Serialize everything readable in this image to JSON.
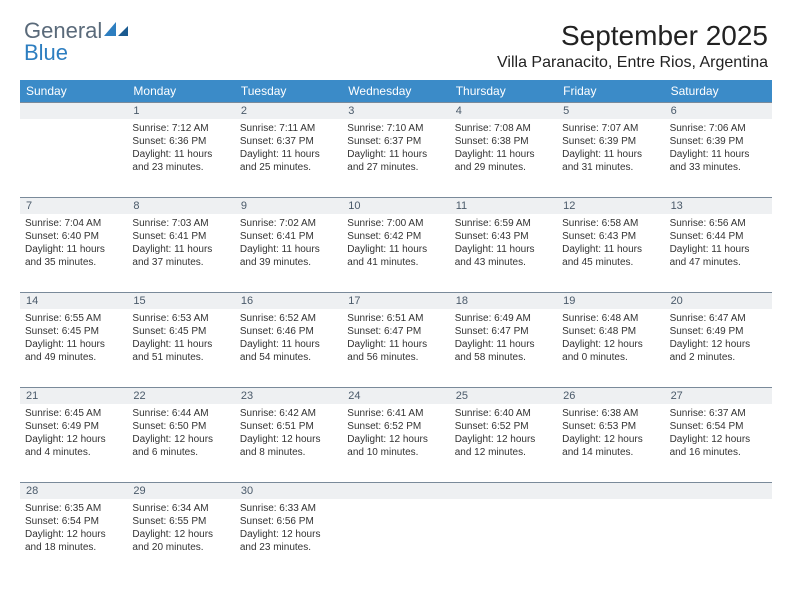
{
  "logo": {
    "word1": "General",
    "word2": "Blue"
  },
  "title": "September 2025",
  "location": "Villa Paranacito, Entre Rios, Argentina",
  "colors": {
    "header_bg": "#3b8bc8",
    "header_text": "#ffffff",
    "daynum_bg": "#eef0f2",
    "border": "#7a8a9a",
    "text": "#333333",
    "logo_gray": "#5a6a7a",
    "logo_blue": "#2d7ec0"
  },
  "day_names": [
    "Sunday",
    "Monday",
    "Tuesday",
    "Wednesday",
    "Thursday",
    "Friday",
    "Saturday"
  ],
  "weeks": [
    [
      {
        "n": "",
        "lines": []
      },
      {
        "n": "1",
        "lines": [
          "Sunrise: 7:12 AM",
          "Sunset: 6:36 PM",
          "Daylight: 11 hours",
          "and 23 minutes."
        ]
      },
      {
        "n": "2",
        "lines": [
          "Sunrise: 7:11 AM",
          "Sunset: 6:37 PM",
          "Daylight: 11 hours",
          "and 25 minutes."
        ]
      },
      {
        "n": "3",
        "lines": [
          "Sunrise: 7:10 AM",
          "Sunset: 6:37 PM",
          "Daylight: 11 hours",
          "and 27 minutes."
        ]
      },
      {
        "n": "4",
        "lines": [
          "Sunrise: 7:08 AM",
          "Sunset: 6:38 PM",
          "Daylight: 11 hours",
          "and 29 minutes."
        ]
      },
      {
        "n": "5",
        "lines": [
          "Sunrise: 7:07 AM",
          "Sunset: 6:39 PM",
          "Daylight: 11 hours",
          "and 31 minutes."
        ]
      },
      {
        "n": "6",
        "lines": [
          "Sunrise: 7:06 AM",
          "Sunset: 6:39 PM",
          "Daylight: 11 hours",
          "and 33 minutes."
        ]
      }
    ],
    [
      {
        "n": "7",
        "lines": [
          "Sunrise: 7:04 AM",
          "Sunset: 6:40 PM",
          "Daylight: 11 hours",
          "and 35 minutes."
        ]
      },
      {
        "n": "8",
        "lines": [
          "Sunrise: 7:03 AM",
          "Sunset: 6:41 PM",
          "Daylight: 11 hours",
          "and 37 minutes."
        ]
      },
      {
        "n": "9",
        "lines": [
          "Sunrise: 7:02 AM",
          "Sunset: 6:41 PM",
          "Daylight: 11 hours",
          "and 39 minutes."
        ]
      },
      {
        "n": "10",
        "lines": [
          "Sunrise: 7:00 AM",
          "Sunset: 6:42 PM",
          "Daylight: 11 hours",
          "and 41 minutes."
        ]
      },
      {
        "n": "11",
        "lines": [
          "Sunrise: 6:59 AM",
          "Sunset: 6:43 PM",
          "Daylight: 11 hours",
          "and 43 minutes."
        ]
      },
      {
        "n": "12",
        "lines": [
          "Sunrise: 6:58 AM",
          "Sunset: 6:43 PM",
          "Daylight: 11 hours",
          "and 45 minutes."
        ]
      },
      {
        "n": "13",
        "lines": [
          "Sunrise: 6:56 AM",
          "Sunset: 6:44 PM",
          "Daylight: 11 hours",
          "and 47 minutes."
        ]
      }
    ],
    [
      {
        "n": "14",
        "lines": [
          "Sunrise: 6:55 AM",
          "Sunset: 6:45 PM",
          "Daylight: 11 hours",
          "and 49 minutes."
        ]
      },
      {
        "n": "15",
        "lines": [
          "Sunrise: 6:53 AM",
          "Sunset: 6:45 PM",
          "Daylight: 11 hours",
          "and 51 minutes."
        ]
      },
      {
        "n": "16",
        "lines": [
          "Sunrise: 6:52 AM",
          "Sunset: 6:46 PM",
          "Daylight: 11 hours",
          "and 54 minutes."
        ]
      },
      {
        "n": "17",
        "lines": [
          "Sunrise: 6:51 AM",
          "Sunset: 6:47 PM",
          "Daylight: 11 hours",
          "and 56 minutes."
        ]
      },
      {
        "n": "18",
        "lines": [
          "Sunrise: 6:49 AM",
          "Sunset: 6:47 PM",
          "Daylight: 11 hours",
          "and 58 minutes."
        ]
      },
      {
        "n": "19",
        "lines": [
          "Sunrise: 6:48 AM",
          "Sunset: 6:48 PM",
          "Daylight: 12 hours",
          "and 0 minutes."
        ]
      },
      {
        "n": "20",
        "lines": [
          "Sunrise: 6:47 AM",
          "Sunset: 6:49 PM",
          "Daylight: 12 hours",
          "and 2 minutes."
        ]
      }
    ],
    [
      {
        "n": "21",
        "lines": [
          "Sunrise: 6:45 AM",
          "Sunset: 6:49 PM",
          "Daylight: 12 hours",
          "and 4 minutes."
        ]
      },
      {
        "n": "22",
        "lines": [
          "Sunrise: 6:44 AM",
          "Sunset: 6:50 PM",
          "Daylight: 12 hours",
          "and 6 minutes."
        ]
      },
      {
        "n": "23",
        "lines": [
          "Sunrise: 6:42 AM",
          "Sunset: 6:51 PM",
          "Daylight: 12 hours",
          "and 8 minutes."
        ]
      },
      {
        "n": "24",
        "lines": [
          "Sunrise: 6:41 AM",
          "Sunset: 6:52 PM",
          "Daylight: 12 hours",
          "and 10 minutes."
        ]
      },
      {
        "n": "25",
        "lines": [
          "Sunrise: 6:40 AM",
          "Sunset: 6:52 PM",
          "Daylight: 12 hours",
          "and 12 minutes."
        ]
      },
      {
        "n": "26",
        "lines": [
          "Sunrise: 6:38 AM",
          "Sunset: 6:53 PM",
          "Daylight: 12 hours",
          "and 14 minutes."
        ]
      },
      {
        "n": "27",
        "lines": [
          "Sunrise: 6:37 AM",
          "Sunset: 6:54 PM",
          "Daylight: 12 hours",
          "and 16 minutes."
        ]
      }
    ],
    [
      {
        "n": "28",
        "lines": [
          "Sunrise: 6:35 AM",
          "Sunset: 6:54 PM",
          "Daylight: 12 hours",
          "and 18 minutes."
        ]
      },
      {
        "n": "29",
        "lines": [
          "Sunrise: 6:34 AM",
          "Sunset: 6:55 PM",
          "Daylight: 12 hours",
          "and 20 minutes."
        ]
      },
      {
        "n": "30",
        "lines": [
          "Sunrise: 6:33 AM",
          "Sunset: 6:56 PM",
          "Daylight: 12 hours",
          "and 23 minutes."
        ]
      },
      {
        "n": "",
        "lines": []
      },
      {
        "n": "",
        "lines": []
      },
      {
        "n": "",
        "lines": []
      },
      {
        "n": "",
        "lines": []
      }
    ]
  ]
}
